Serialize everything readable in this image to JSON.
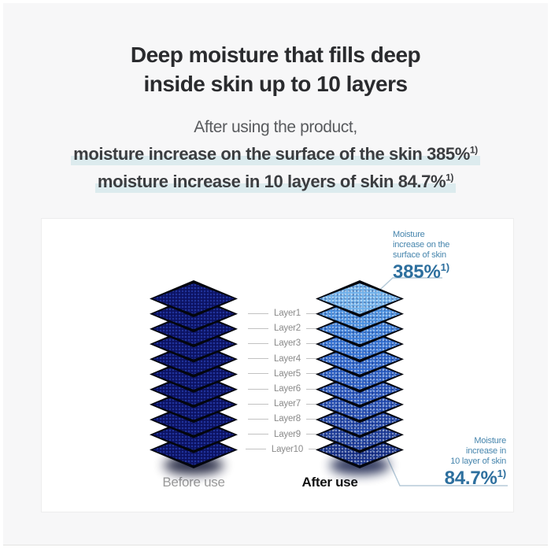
{
  "header": {
    "title_line1": "Deep moisture that fills deep",
    "title_line2": "inside skin up to 10 layers",
    "subtitle": "After using the product,",
    "claim1": {
      "text": "moisture increase on the surface of the skin 385%",
      "sup": "1)"
    },
    "claim2": {
      "text": "moisture increase in 10 layers of skin 84.7%",
      "sup": "1)"
    },
    "highlight_color": "#dcebee"
  },
  "diagram": {
    "layer_labels": [
      "Layer1",
      "Layer2",
      "Layer3",
      "Layer4",
      "Layer5",
      "Layer6",
      "Layer7",
      "Layer8",
      "Layer9",
      "Layer10"
    ],
    "before_label": "Before use",
    "after_label": "After use",
    "top_callout": {
      "lines": [
        "Moisture",
        "increase on the",
        "surface of skin"
      ],
      "value": "385%",
      "sup": "1)"
    },
    "bottom_callout": {
      "lines": [
        "Moisture",
        "increase in",
        "10 layer of skin"
      ],
      "value": "84.7%",
      "sup": "1)"
    },
    "colors": {
      "before_layers": [
        "#0b1160",
        "#0b1160",
        "#0b1160",
        "#0b1160",
        "#0b1160",
        "#0b1160",
        "#0b1160",
        "#0b1160",
        "#0b1160",
        "#0b1160",
        "#0b1160"
      ],
      "after_layers": [
        "#6fb0ea",
        "#4a90e0",
        "#3b7dd8",
        "#3270d2",
        "#2c64ca",
        "#295cc2",
        "#2653ba",
        "#234bb0",
        "#1f43a4",
        "#1b3a97",
        "#163088"
      ],
      "before_shadow": "#060a28",
      "after_shadow": "#0a1440",
      "callout_text": "#4685ad",
      "callout_value": "#2d6f9e",
      "callout_line": "#b5cad8"
    }
  }
}
